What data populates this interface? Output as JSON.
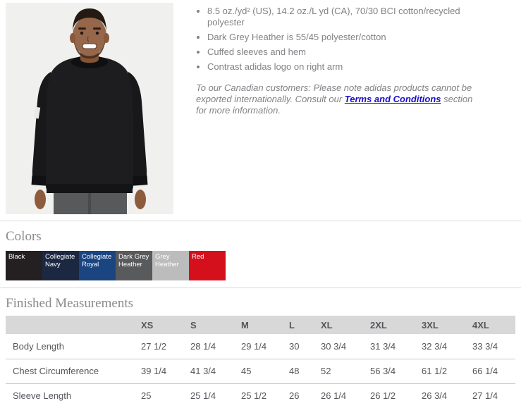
{
  "product_details": {
    "bullets": [
      "8.5 oz./yd² (US), 14.2 oz./L yd (CA), 70/30 BCI cotton/recycled polyester",
      "Dark Grey Heather is 55/45 polyester/cotton",
      "Cuffed sleeves and hem",
      "Contrast adidas logo on right arm"
    ],
    "canadian_note": {
      "before_link": "To our Canadian customers: Please note adidas products cannot be exported internationally. Consult our ",
      "link_text": "Terms and Conditions",
      "after_link": " section for more information."
    },
    "link_color": "#1a0dd0",
    "text_color": "#808285"
  },
  "colors_section": {
    "title": "Colors",
    "swatches": [
      {
        "name": "Black",
        "hex": "#242021"
      },
      {
        "name": "Collegiate Navy",
        "hex": "#1c2742"
      },
      {
        "name": "Collegiate Royal",
        "hex": "#1a4581"
      },
      {
        "name": "Dark Grey Heather",
        "hex": "#595a5c"
      },
      {
        "name": "Grey Heather",
        "hex": "#bbbcbb"
      },
      {
        "name": "Red",
        "hex": "#d5101d"
      }
    ]
  },
  "measurements_section": {
    "title": "Finished Measurements",
    "size_columns": [
      "XS",
      "S",
      "M",
      "L",
      "XL",
      "2XL",
      "3XL",
      "4XL"
    ],
    "rows": [
      {
        "label": "Body Length",
        "values": [
          "27 1/2",
          "28 1/4",
          "29 1/4",
          "30",
          "30 3/4",
          "31 3/4",
          "32 3/4",
          "33 3/4"
        ]
      },
      {
        "label": "Chest Circumference",
        "values": [
          "39 1/4",
          "41 3/4",
          "45",
          "48",
          "52",
          "56 3/4",
          "61 1/2",
          "66 1/4"
        ]
      },
      {
        "label": "Sleeve Length",
        "values": [
          "25",
          "25 1/4",
          "25 1/2",
          "26",
          "26 1/4",
          "26 1/2",
          "26 3/4",
          "27 1/4"
        ]
      }
    ]
  }
}
